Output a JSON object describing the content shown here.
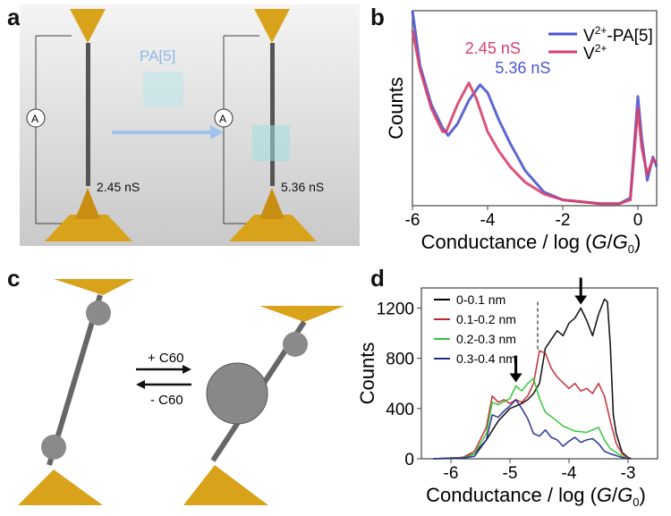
{
  "panels": {
    "a": {
      "label": "a",
      "guest": "PA[5]",
      "cond_left": "2.45 nS",
      "cond_right": "5.36 nS",
      "ammeter": "A"
    },
    "b": {
      "label": "b"
    },
    "c": {
      "label": "c",
      "add": "+ C60",
      "remove": "- C60"
    },
    "d": {
      "label": "d"
    }
  },
  "colors": {
    "gold": "#d9a21b",
    "blue": "#4b55d0",
    "red": "#d8406a",
    "arrow": "#9fc3ec"
  },
  "chart_data": [
    {
      "id": "b",
      "type": "line",
      "xlabel": "Conductance / log (G/G0)",
      "ylabel": "Counts",
      "xlim": [
        -6,
        0.5
      ],
      "ylim": [
        0,
        100
      ],
      "xticks": [
        -6,
        -4,
        -2,
        0
      ],
      "legend": "top-right",
      "annotations": [
        {
          "text": "2.45 nS",
          "x": -4.6,
          "y": 78,
          "color": "#d8406a"
        },
        {
          "text": "5.36 nS",
          "x": -3.8,
          "y": 68,
          "color": "#4b55d0"
        }
      ],
      "series": [
        {
          "name": "V2+-PA[5]",
          "color": "#4b55d0",
          "x": [
            -6,
            -5.8,
            -5.5,
            -5.2,
            -5.05,
            -4.8,
            -4.5,
            -4.2,
            -4.0,
            -3.7,
            -3.4,
            -3,
            -2.5,
            -2,
            -1,
            -0.5,
            -0.2,
            0,
            0.1,
            0.25,
            0.4,
            0.5
          ],
          "y": [
            100,
            72,
            52,
            40,
            36,
            42,
            54,
            62,
            58,
            44,
            32,
            18,
            7,
            3,
            1,
            1,
            4,
            56,
            35,
            13,
            25,
            20
          ]
        },
        {
          "name": "V2+",
          "color": "#d8406a",
          "x": [
            -6,
            -5.8,
            -5.5,
            -5.2,
            -5.1,
            -4.8,
            -4.5,
            -4.3,
            -4.0,
            -3.7,
            -3.4,
            -3,
            -2.5,
            -2,
            -1,
            -0.5,
            -0.2,
            0,
            0.1,
            0.25,
            0.4,
            0.5
          ],
          "y": [
            90,
            70,
            50,
            38,
            38,
            52,
            63,
            55,
            38,
            28,
            20,
            12,
            6,
            3,
            1,
            1,
            3,
            50,
            30,
            16,
            24,
            22
          ]
        }
      ]
    },
    {
      "id": "d",
      "type": "line",
      "xlabel": "Conductance / log (G/G0)",
      "ylabel": "Counts",
      "xlim": [
        -6.5,
        -2.5
      ],
      "ylim": [
        0,
        1360
      ],
      "xticks": [
        -6,
        -5,
        -4,
        -3
      ],
      "yticks": [
        0,
        400,
        800,
        1200
      ],
      "legend": "top-left",
      "markers": [
        {
          "type": "arrow",
          "x": -3.8,
          "y": 1200
        },
        {
          "type": "arrow",
          "x": -4.9,
          "y": 580
        },
        {
          "type": "dashed-line",
          "x": -4.53
        }
      ],
      "series": [
        {
          "name": "0-0.1 nm",
          "color": "#000000",
          "x": [
            -6.3,
            -5.8,
            -5.6,
            -5.4,
            -5.2,
            -5.0,
            -4.9,
            -4.8,
            -4.7,
            -4.6,
            -4.5,
            -4.4,
            -4.3,
            -4.2,
            -4.1,
            -4.0,
            -3.9,
            -3.8,
            -3.7,
            -3.6,
            -3.5,
            -3.4,
            -3.35,
            -3.3,
            -3.25,
            -3.2,
            -3.1,
            -3.0,
            -2.95
          ],
          "y": [
            0,
            10,
            40,
            150,
            300,
            400,
            420,
            440,
            470,
            520,
            600,
            880,
            950,
            1020,
            980,
            1080,
            1120,
            1200,
            1100,
            980,
            1150,
            1270,
            1250,
            900,
            350,
            200,
            50,
            10,
            0
          ]
        },
        {
          "name": "0.1-0.2 nm",
          "color": "#c0262e",
          "x": [
            -6.3,
            -5.8,
            -5.6,
            -5.4,
            -5.3,
            -5.2,
            -5.1,
            -5.0,
            -4.9,
            -4.8,
            -4.7,
            -4.6,
            -4.5,
            -4.4,
            -4.3,
            -4.2,
            -4.0,
            -3.9,
            -3.8,
            -3.7,
            -3.6,
            -3.5,
            -3.4,
            -3.3,
            -3.2,
            -3.1,
            -3.0
          ],
          "y": [
            0,
            10,
            60,
            250,
            500,
            450,
            470,
            440,
            470,
            450,
            500,
            600,
            860,
            840,
            720,
            650,
            560,
            600,
            540,
            560,
            520,
            600,
            500,
            300,
            120,
            40,
            5
          ]
        },
        {
          "name": "0.2-0.3 nm",
          "color": "#2fc42f",
          "x": [
            -6.3,
            -5.8,
            -5.6,
            -5.4,
            -5.3,
            -5.2,
            -5.0,
            -4.9,
            -4.8,
            -4.7,
            -4.6,
            -4.5,
            -4.4,
            -4.2,
            -4.1,
            -3.9,
            -3.7,
            -3.5,
            -3.4,
            -3.3,
            -3.1,
            -3.0
          ],
          "y": [
            0,
            5,
            40,
            200,
            450,
            430,
            480,
            580,
            540,
            600,
            640,
            480,
            370,
            300,
            260,
            220,
            210,
            250,
            150,
            80,
            20,
            0
          ]
        },
        {
          "name": "0.3-0.4 nm",
          "color": "#1f2a8c",
          "x": [
            -6.3,
            -5.8,
            -5.6,
            -5.4,
            -5.3,
            -5.2,
            -5.1,
            -5.0,
            -4.9,
            -4.8,
            -4.7,
            -4.6,
            -4.5,
            -4.4,
            -4.3,
            -4.2,
            -4.1,
            -4.0,
            -3.9,
            -3.8,
            -3.7,
            -3.6,
            -3.5,
            -3.4,
            -3.3,
            -3.1,
            -3.0
          ],
          "y": [
            0,
            5,
            20,
            150,
            350,
            330,
            380,
            420,
            470,
            400,
            320,
            200,
            180,
            230,
            170,
            150,
            100,
            140,
            170,
            130,
            150,
            160,
            120,
            60,
            40,
            10,
            0
          ]
        }
      ]
    }
  ]
}
